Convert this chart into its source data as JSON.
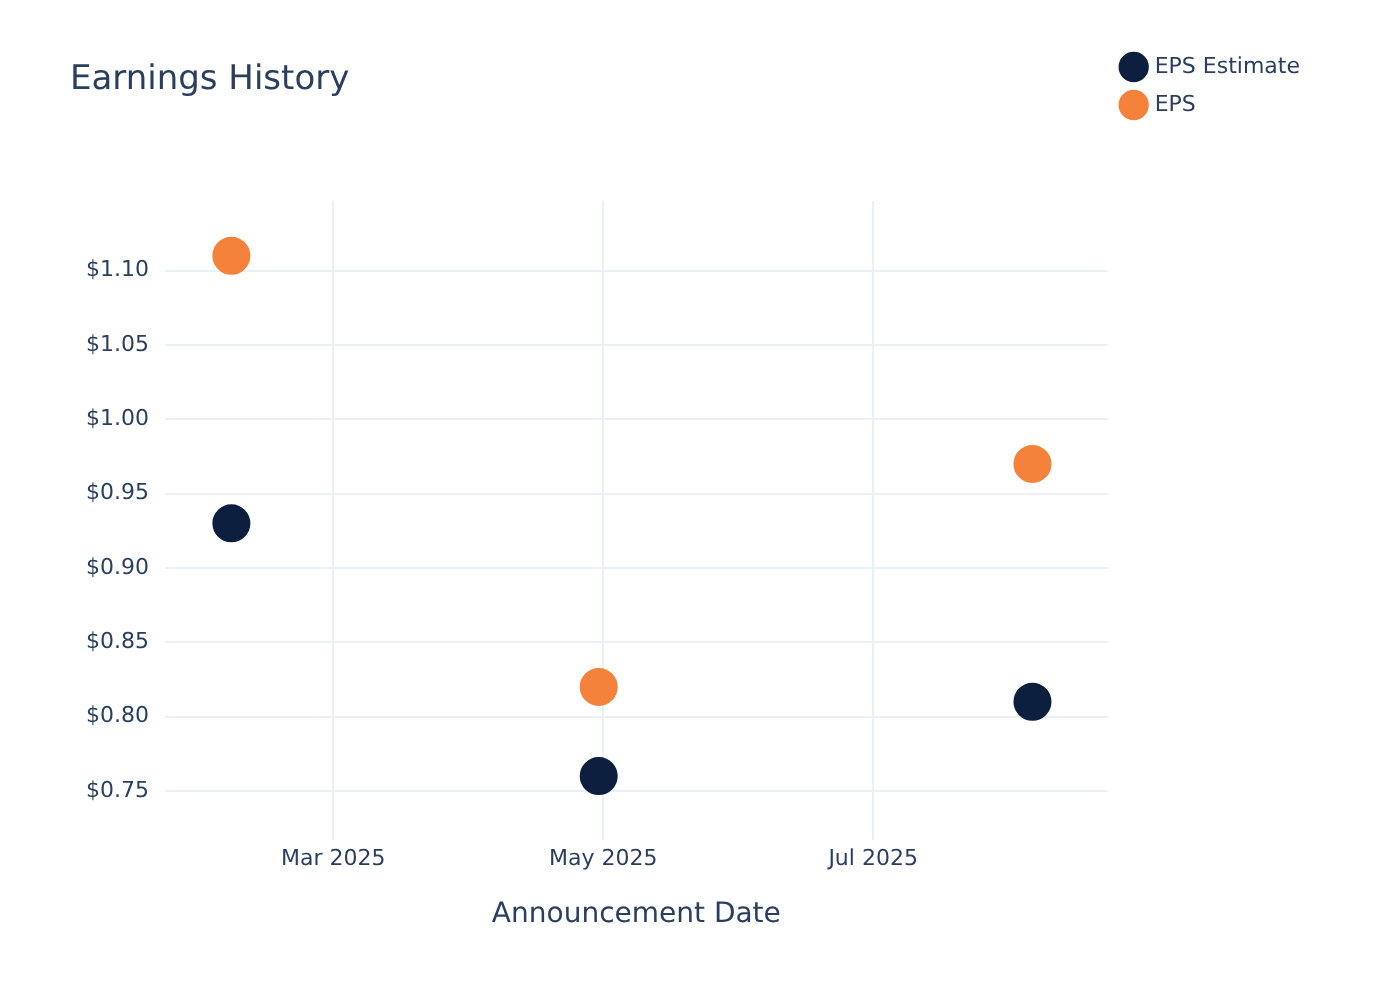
{
  "chart_data": {
    "type": "scatter",
    "title": "Earnings History",
    "xlabel": "Announcement Date",
    "x": [
      "2025-02-06",
      "2025-04-30",
      "2025-08-06"
    ],
    "series": [
      {
        "name": "EPS Estimate",
        "color": "#0c1f3f",
        "values": [
          0.93,
          0.76,
          0.81
        ]
      },
      {
        "name": "EPS",
        "color": "#f5823a",
        "values": [
          1.11,
          0.82,
          0.97
        ]
      }
    ],
    "xlim": [
      "2025-01-22",
      "2025-08-23"
    ],
    "xticks": [
      {
        "value": "2025-03-01",
        "label": "Mar 2025"
      },
      {
        "value": "2025-05-01",
        "label": "May 2025"
      },
      {
        "value": "2025-07-01",
        "label": "Jul 2025"
      }
    ],
    "ylim": [
      0.717,
      1.147
    ],
    "yticks": [
      {
        "value": 0.75,
        "label": "$0.75"
      },
      {
        "value": 0.8,
        "label": "$0.80"
      },
      {
        "value": 0.85,
        "label": "$0.85"
      },
      {
        "value": 0.9,
        "label": "$0.90"
      },
      {
        "value": 0.95,
        "label": "$0.95"
      },
      {
        "value": 1.0,
        "label": "$1.00"
      },
      {
        "value": 1.05,
        "label": "$1.05"
      },
      {
        "value": 1.1,
        "label": "$1.10"
      }
    ],
    "grid": true,
    "legend": "top right",
    "marker": "circle"
  }
}
